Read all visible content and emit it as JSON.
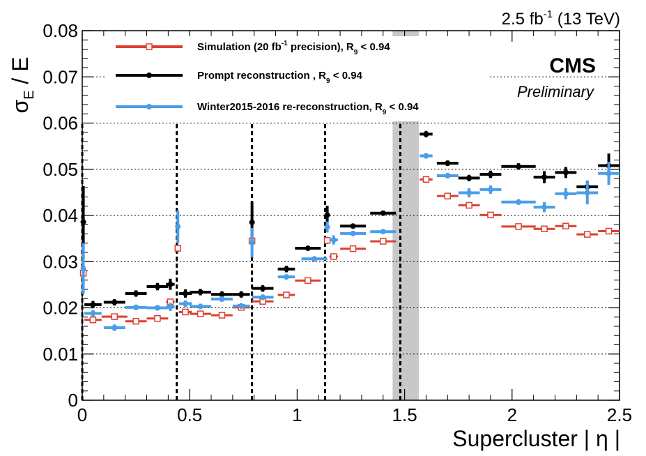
{
  "lumi_label": {
    "value": "2.5",
    "unit": "fb",
    "exp": "-1",
    "energy": "(13 TeV)"
  },
  "cms_label": "CMS",
  "preliminary_label": "Preliminary",
  "colors": {
    "simulation": "#dd3f2f",
    "prompt": "#000000",
    "winter": "#4a9ee8",
    "gap_band": "#c8c8c8",
    "grid": "#000000"
  },
  "legend": [
    {
      "id": "simulation",
      "parts": [
        "Simulation (20 fb",
        "-1",
        " precision), R",
        "9",
        " < 0.94"
      ],
      "marker": "open-square"
    },
    {
      "id": "prompt",
      "parts": [
        "Prompt reconstruction , R",
        "9",
        " < 0.94"
      ],
      "marker": "filled-circle"
    },
    {
      "id": "winter",
      "parts": [
        "Winter2015-2016 re-reconstruction, R",
        "9",
        " < 0.94"
      ],
      "marker": "filled-circle"
    }
  ],
  "chart_data": {
    "type": "scatter",
    "title": "",
    "xlabel": "Supercluster | η |",
    "ylabel": {
      "main": "σ",
      "sub": "E",
      "rest": " / E"
    },
    "xlim": [
      0,
      2.5
    ],
    "ylim": [
      0,
      0.08
    ],
    "x_ticks": [
      0,
      0.5,
      1,
      1.5,
      2,
      2.5
    ],
    "x_tick_labels": [
      "0",
      "0.5",
      "1",
      "1.5",
      "2",
      "2.5"
    ],
    "y_ticks": [
      0,
      0.01,
      0.02,
      0.03,
      0.04,
      0.05,
      0.06,
      0.07,
      0.08
    ],
    "y_tick_labels": [
      "0",
      "0.01",
      "0.02",
      "0.03",
      "0.04",
      "0.05",
      "0.06",
      "0.07",
      "0.08"
    ],
    "grid": "horizontal dotted",
    "legend_position": "top-left",
    "module_boundaries": [
      0,
      0.44,
      0.79,
      1.13,
      1.48
    ],
    "gap_band": [
      1.4442,
      1.566
    ],
    "series": [
      {
        "id": "simulation",
        "points": [
          {
            "x": 0.005,
            "xerr": 0.005,
            "y": 0.0275,
            "yerr": 0.001
          },
          {
            "x": 0.05,
            "xerr": 0.04,
            "y": 0.0174,
            "yerr": 0.0003
          },
          {
            "x": 0.15,
            "xerr": 0.06,
            "y": 0.0181,
            "yerr": 0.0003
          },
          {
            "x": 0.25,
            "xerr": 0.05,
            "y": 0.0171,
            "yerr": 0.0003
          },
          {
            "x": 0.35,
            "xerr": 0.05,
            "y": 0.0177,
            "yerr": 0.0003
          },
          {
            "x": 0.41,
            "xerr": 0.02,
            "y": 0.0213,
            "yerr": 0.0005
          },
          {
            "x": 0.445,
            "xerr": 0.005,
            "y": 0.0329,
            "yerr": 0.001
          },
          {
            "x": 0.48,
            "xerr": 0.03,
            "y": 0.0191,
            "yerr": 0.0003
          },
          {
            "x": 0.55,
            "xerr": 0.05,
            "y": 0.0187,
            "yerr": 0.0003
          },
          {
            "x": 0.65,
            "xerr": 0.05,
            "y": 0.0184,
            "yerr": 0.0003
          },
          {
            "x": 0.74,
            "xerr": 0.04,
            "y": 0.0201,
            "yerr": 0.0004
          },
          {
            "x": 0.79,
            "xerr": 0.005,
            "y": 0.0345,
            "yerr": 0.001
          },
          {
            "x": 0.84,
            "xerr": 0.05,
            "y": 0.0214,
            "yerr": 0.0003
          },
          {
            "x": 0.95,
            "xerr": 0.04,
            "y": 0.0228,
            "yerr": 0.0003
          },
          {
            "x": 1.05,
            "xerr": 0.06,
            "y": 0.0259,
            "yerr": 0.0003
          },
          {
            "x": 1.14,
            "xerr": 0.01,
            "y": 0.0346,
            "yerr": 0.0008
          },
          {
            "x": 1.17,
            "xerr": 0.02,
            "y": 0.0311,
            "yerr": 0.0004
          },
          {
            "x": 1.26,
            "xerr": 0.06,
            "y": 0.0328,
            "yerr": 0.0003
          },
          {
            "x": 1.4,
            "xerr": 0.06,
            "y": 0.0344,
            "yerr": 0.0003
          },
          {
            "x": 1.6,
            "xerr": 0.03,
            "y": 0.0478,
            "yerr": 0.0004
          },
          {
            "x": 1.7,
            "xerr": 0.05,
            "y": 0.0442,
            "yerr": 0.0003
          },
          {
            "x": 1.8,
            "xerr": 0.05,
            "y": 0.0422,
            "yerr": 0.0003
          },
          {
            "x": 1.9,
            "xerr": 0.05,
            "y": 0.0401,
            "yerr": 0.0003
          },
          {
            "x": 2.03,
            "xerr": 0.08,
            "y": 0.0376,
            "yerr": 0.0003
          },
          {
            "x": 2.15,
            "xerr": 0.05,
            "y": 0.0371,
            "yerr": 0.0003
          },
          {
            "x": 2.25,
            "xerr": 0.05,
            "y": 0.0377,
            "yerr": 0.0003
          },
          {
            "x": 2.35,
            "xerr": 0.05,
            "y": 0.0359,
            "yerr": 0.0004
          },
          {
            "x": 2.45,
            "xerr": 0.05,
            "y": 0.0366,
            "yerr": 0.0007
          }
        ]
      },
      {
        "id": "prompt",
        "points": [
          {
            "x": 0.005,
            "xerr": 0.005,
            "y": 0.0386,
            "yerr": 0.0078
          },
          {
            "x": 0.05,
            "xerr": 0.04,
            "y": 0.0207,
            "yerr": 0.0008
          },
          {
            "x": 0.15,
            "xerr": 0.05,
            "y": 0.0212,
            "yerr": 0.0007
          },
          {
            "x": 0.25,
            "xerr": 0.05,
            "y": 0.0231,
            "yerr": 0.0007
          },
          {
            "x": 0.35,
            "xerr": 0.05,
            "y": 0.0246,
            "yerr": 0.0008
          },
          {
            "x": 0.41,
            "xerr": 0.02,
            "y": 0.0251,
            "yerr": 0.0012
          },
          {
            "x": 0.48,
            "xerr": 0.03,
            "y": 0.0231,
            "yerr": 0.0009
          },
          {
            "x": 0.55,
            "xerr": 0.05,
            "y": 0.0234,
            "yerr": 0.0007
          },
          {
            "x": 0.65,
            "xerr": 0.05,
            "y": 0.0229,
            "yerr": 0.0007
          },
          {
            "x": 0.74,
            "xerr": 0.04,
            "y": 0.0229,
            "yerr": 0.0007
          },
          {
            "x": 0.79,
            "xerr": 0.005,
            "y": 0.0385,
            "yerr": 0.0045
          },
          {
            "x": 0.84,
            "xerr": 0.05,
            "y": 0.0242,
            "yerr": 0.0007
          },
          {
            "x": 0.95,
            "xerr": 0.04,
            "y": 0.0284,
            "yerr": 0.0007
          },
          {
            "x": 1.05,
            "xerr": 0.06,
            "y": 0.0329,
            "yerr": 0.0005
          },
          {
            "x": 1.14,
            "xerr": 0.01,
            "y": 0.0401,
            "yerr": 0.002
          },
          {
            "x": 1.26,
            "xerr": 0.06,
            "y": 0.0377,
            "yerr": 0.0005
          },
          {
            "x": 1.4,
            "xerr": 0.06,
            "y": 0.0405,
            "yerr": 0.0005
          },
          {
            "x": 1.6,
            "xerr": 0.03,
            "y": 0.0576,
            "yerr": 0.0007
          },
          {
            "x": 1.7,
            "xerr": 0.05,
            "y": 0.0513,
            "yerr": 0.0006
          },
          {
            "x": 1.8,
            "xerr": 0.05,
            "y": 0.0481,
            "yerr": 0.0007
          },
          {
            "x": 1.9,
            "xerr": 0.05,
            "y": 0.0489,
            "yerr": 0.0008
          },
          {
            "x": 2.03,
            "xerr": 0.08,
            "y": 0.0506,
            "yerr": 0.0007
          },
          {
            "x": 2.15,
            "xerr": 0.05,
            "y": 0.0483,
            "yerr": 0.0013
          },
          {
            "x": 2.25,
            "xerr": 0.05,
            "y": 0.0493,
            "yerr": 0.0012
          },
          {
            "x": 2.35,
            "xerr": 0.05,
            "y": 0.0462,
            "yerr": 0.0013
          },
          {
            "x": 2.45,
            "xerr": 0.05,
            "y": 0.0508,
            "yerr": 0.0026
          }
        ]
      },
      {
        "id": "winter",
        "points": [
          {
            "x": 0.005,
            "xerr": 0.005,
            "y": 0.0285,
            "yerr": 0.0055
          },
          {
            "x": 0.05,
            "xerr": 0.04,
            "y": 0.0188,
            "yerr": 0.0007
          },
          {
            "x": 0.15,
            "xerr": 0.05,
            "y": 0.0157,
            "yerr": 0.0007
          },
          {
            "x": 0.25,
            "xerr": 0.05,
            "y": 0.0201,
            "yerr": 0.0006
          },
          {
            "x": 0.35,
            "xerr": 0.05,
            "y": 0.02,
            "yerr": 0.0006
          },
          {
            "x": 0.41,
            "xerr": 0.02,
            "y": 0.0202,
            "yerr": 0.0009
          },
          {
            "x": 0.445,
            "xerr": 0.005,
            "y": 0.0376,
            "yerr": 0.0035
          },
          {
            "x": 0.48,
            "xerr": 0.03,
            "y": 0.0209,
            "yerr": 0.0007
          },
          {
            "x": 0.55,
            "xerr": 0.05,
            "y": 0.0203,
            "yerr": 0.0006
          },
          {
            "x": 0.65,
            "xerr": 0.05,
            "y": 0.0219,
            "yerr": 0.0006
          },
          {
            "x": 0.74,
            "xerr": 0.04,
            "y": 0.0204,
            "yerr": 0.0006
          },
          {
            "x": 0.79,
            "xerr": 0.005,
            "y": 0.0341,
            "yerr": 0.0032
          },
          {
            "x": 0.84,
            "xerr": 0.05,
            "y": 0.0223,
            "yerr": 0.0006
          },
          {
            "x": 0.95,
            "xerr": 0.04,
            "y": 0.0267,
            "yerr": 0.0005
          },
          {
            "x": 1.08,
            "xerr": 0.06,
            "y": 0.0306,
            "yerr": 0.0004
          },
          {
            "x": 1.14,
            "xerr": 0.01,
            "y": 0.0375,
            "yerr": 0.0012
          },
          {
            "x": 1.17,
            "xerr": 0.02,
            "y": 0.0347,
            "yerr": 0.001
          },
          {
            "x": 1.26,
            "xerr": 0.06,
            "y": 0.0361,
            "yerr": 0.0004
          },
          {
            "x": 1.4,
            "xerr": 0.06,
            "y": 0.0365,
            "yerr": 0.0004
          },
          {
            "x": 1.6,
            "xerr": 0.03,
            "y": 0.0529,
            "yerr": 0.0006
          },
          {
            "x": 1.7,
            "xerr": 0.05,
            "y": 0.0486,
            "yerr": 0.0006
          },
          {
            "x": 1.8,
            "xerr": 0.05,
            "y": 0.0449,
            "yerr": 0.001
          },
          {
            "x": 1.9,
            "xerr": 0.05,
            "y": 0.0456,
            "yerr": 0.0009
          },
          {
            "x": 2.03,
            "xerr": 0.08,
            "y": 0.0429,
            "yerr": 0.0006
          },
          {
            "x": 2.15,
            "xerr": 0.05,
            "y": 0.0418,
            "yerr": 0.0011
          },
          {
            "x": 2.25,
            "xerr": 0.05,
            "y": 0.0447,
            "yerr": 0.0012
          },
          {
            "x": 2.35,
            "xerr": 0.05,
            "y": 0.0449,
            "yerr": 0.0025
          },
          {
            "x": 2.45,
            "xerr": 0.05,
            "y": 0.0491,
            "yerr": 0.0025
          }
        ]
      }
    ]
  }
}
